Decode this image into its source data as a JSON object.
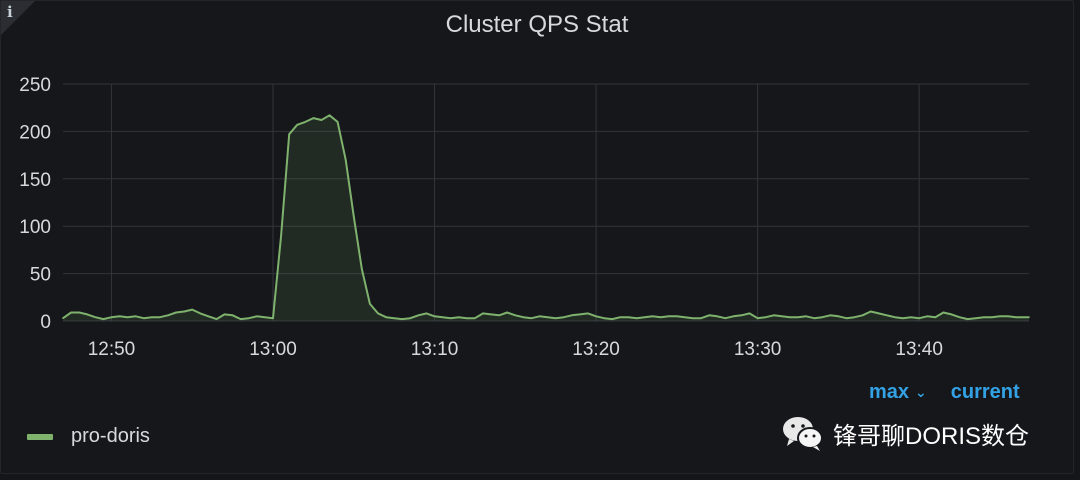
{
  "panel": {
    "title": "Cluster QPS Stat",
    "info_glyph": "i",
    "info_icon": "info-icon"
  },
  "legend": {
    "max_label": "max",
    "current_label": "current",
    "series_name": "pro-doris",
    "series_color": "#7eb26d"
  },
  "watermark": {
    "text": "锋哥聊DORIS数仓",
    "icon": "wechat-icon"
  },
  "chart_data": {
    "type": "area",
    "title": "Cluster QPS Stat",
    "xlabel": "",
    "ylabel": "",
    "x_ticks": [
      "12:50",
      "13:00",
      "13:10",
      "13:20",
      "13:30",
      "13:40"
    ],
    "x_tick_minutes": [
      0,
      10,
      20,
      30,
      40,
      50
    ],
    "y_ticks": [
      0,
      50,
      100,
      150,
      200,
      250
    ],
    "xlim_minutes_from_1250": [
      -3,
      56.8
    ],
    "ylim": [
      0,
      250
    ],
    "grid": true,
    "legend_position": "bottom",
    "series": [
      {
        "name": "pro-doris",
        "color": "#7eb26d",
        "x_minutes_from_1250": [
          -3,
          -2.5,
          -2,
          -1.5,
          -1,
          -0.5,
          0,
          0.5,
          1,
          1.5,
          2,
          2.5,
          3,
          3.5,
          4,
          4.5,
          5,
          5.5,
          6,
          6.5,
          7,
          7.5,
          8,
          8.5,
          9,
          9.5,
          10,
          10.5,
          11,
          11.5,
          12,
          12.5,
          13,
          13.5,
          14,
          14.5,
          15,
          15.5,
          16,
          16.5,
          17,
          17.5,
          18,
          18.5,
          19,
          19.5,
          20,
          20.5,
          21,
          21.5,
          22,
          22.5,
          23,
          23.5,
          24,
          24.5,
          25,
          25.5,
          26,
          26.5,
          27,
          27.5,
          28,
          28.5,
          29,
          29.5,
          30,
          30.5,
          31,
          31.5,
          32,
          32.5,
          33,
          33.5,
          34,
          34.5,
          35,
          35.5,
          36,
          36.5,
          37,
          37.5,
          38,
          38.5,
          39,
          39.5,
          40,
          40.5,
          41,
          41.5,
          42,
          42.5,
          43,
          43.5,
          44,
          44.5,
          45,
          45.5,
          46,
          46.5,
          47,
          47.5,
          48,
          48.5,
          49,
          49.5,
          50,
          50.5,
          51,
          51.5,
          52,
          52.5,
          53,
          53.5,
          54,
          54.5,
          55,
          55.5,
          56,
          56.5,
          56.8
        ],
        "values": [
          3,
          9,
          9,
          7,
          4,
          2,
          4,
          5,
          4,
          5,
          3,
          4,
          4,
          6,
          9,
          10,
          12,
          8,
          5,
          2,
          7,
          6,
          2,
          3,
          5,
          4,
          3,
          90,
          197,
          207,
          210,
          214,
          212,
          217,
          210,
          170,
          110,
          55,
          18,
          8,
          4,
          3,
          2,
          3,
          6,
          8,
          5,
          4,
          3,
          4,
          3,
          3,
          8,
          7,
          6,
          9,
          6,
          4,
          3,
          5,
          4,
          3,
          4,
          6,
          7,
          8,
          5,
          3,
          2,
          4,
          4,
          3,
          4,
          5,
          4,
          5,
          5,
          4,
          3,
          3,
          6,
          5,
          3,
          5,
          6,
          8,
          3,
          4,
          6,
          5,
          4,
          4,
          5,
          3,
          4,
          6,
          5,
          3,
          4,
          6,
          10,
          8,
          6,
          4,
          3,
          4,
          3,
          5,
          4,
          9,
          7,
          4,
          2,
          3,
          4,
          4,
          5,
          5,
          4,
          4,
          4
        ]
      }
    ]
  }
}
